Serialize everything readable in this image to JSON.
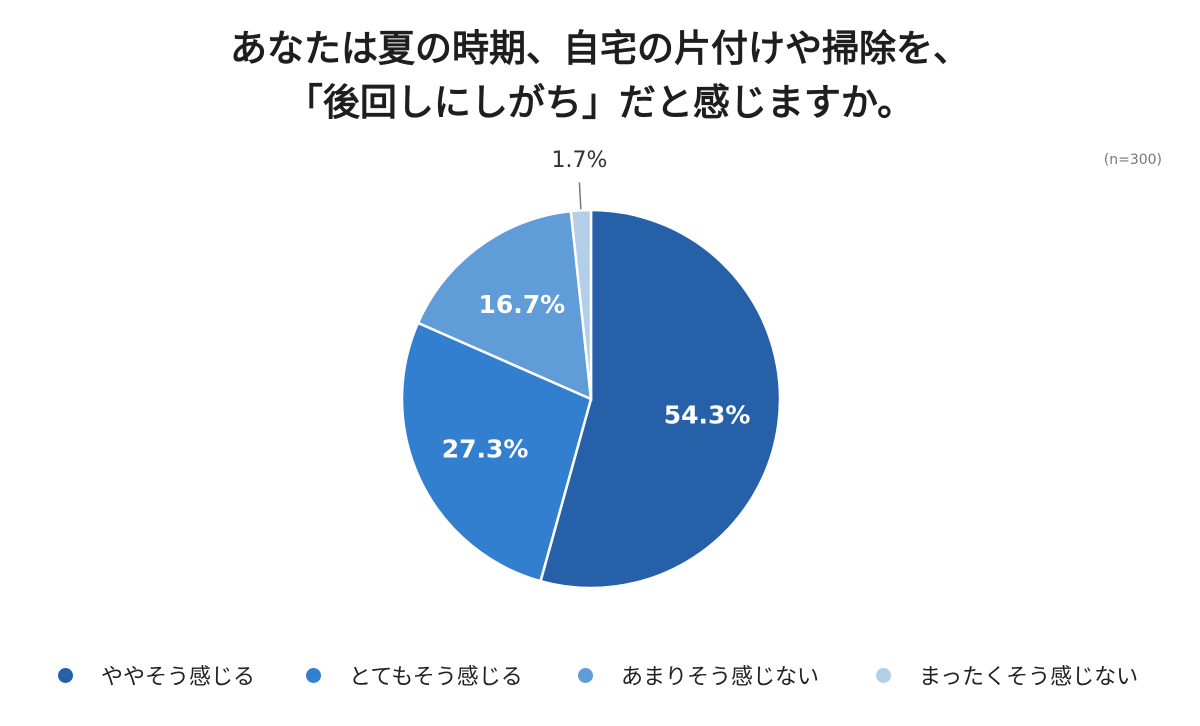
{
  "chart_data": {
    "type": "pie",
    "title": [
      "あなたは夏の時期、自宅の片付けや掃除を、",
      "「後回しにしがち」だと感じますか。"
    ],
    "note": "(n=300)",
    "legend_position": "bottom",
    "categories": [
      "ややそう感じる",
      "とてもそう感じる",
      "あまりそう感じない",
      "まったくそう感じない"
    ],
    "values": [
      54.3,
      27.3,
      16.7,
      1.7
    ],
    "labels": [
      "54.3%",
      "27.3%",
      "16.7%",
      "1.7%"
    ],
    "colors": [
      "#2660a8",
      "#327fcf",
      "#609cd8",
      "#b3cfe8"
    ]
  }
}
